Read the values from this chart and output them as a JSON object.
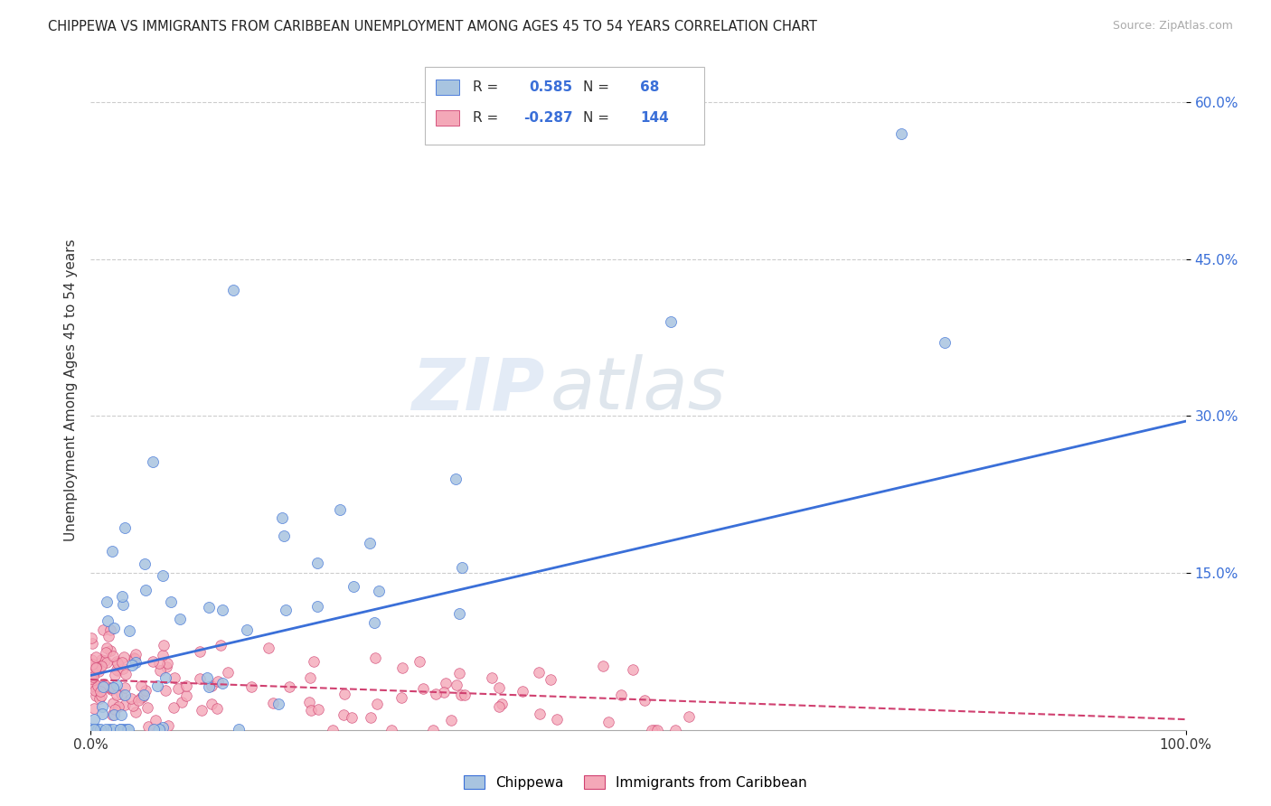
{
  "title": "CHIPPEWA VS IMMIGRANTS FROM CARIBBEAN UNEMPLOYMENT AMONG AGES 45 TO 54 YEARS CORRELATION CHART",
  "source": "Source: ZipAtlas.com",
  "ylabel": "Unemployment Among Ages 45 to 54 years",
  "x_tick_labels": [
    "0.0%",
    "100.0%"
  ],
  "y_tick_labels": [
    "15.0%",
    "30.0%",
    "45.0%",
    "60.0%"
  ],
  "y_tick_values": [
    0.15,
    0.3,
    0.45,
    0.6
  ],
  "xlim": [
    0.0,
    1.0
  ],
  "ylim": [
    0.0,
    0.65
  ],
  "legend_labels": [
    "Chippewa",
    "Immigrants from Caribbean"
  ],
  "blue_R": 0.585,
  "blue_N": 68,
  "pink_R": -0.287,
  "pink_N": 144,
  "blue_color": "#a8c4e0",
  "pink_color": "#f4a8b8",
  "blue_line_color": "#3a6fd8",
  "pink_line_color": "#d04070",
  "watermark_text": "ZIP",
  "watermark_text2": "atlas",
  "background_color": "#ffffff",
  "grid_color": "#cccccc",
  "blue_trend_start": 0.052,
  "blue_trend_end": 0.295,
  "pink_trend_start": 0.048,
  "pink_trend_end": 0.01
}
